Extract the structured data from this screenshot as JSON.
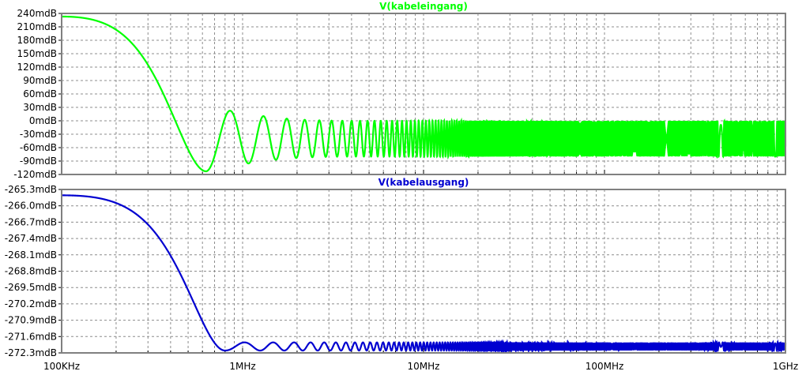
{
  "chart_data": [
    {
      "type": "line",
      "title": "V(kabeleingang)",
      "color": "#00ff00",
      "xscale": "log",
      "xlim": [
        100000,
        1000000000
      ],
      "ylim": [
        -120,
        240
      ],
      "yunit": "mdB",
      "yticks": [
        "240mdB",
        "210mdB",
        "180mdB",
        "150mdB",
        "120mdB",
        "90mdB",
        "60mdB",
        "30mdB",
        "0mdB",
        "-30mdB",
        "-60mdB",
        "-90mdB",
        "-120mdB"
      ],
      "yvalues": [
        240,
        210,
        180,
        150,
        120,
        90,
        60,
        30,
        0,
        -30,
        -60,
        -90,
        -120
      ],
      "grid": true,
      "series": [
        {
          "shape": "decaying ripple vs log frequency",
          "start": [
            100000,
            233
          ],
          "minimum": [
            630000,
            -113
          ],
          "peaks": [
            [
              1100000,
              12
            ],
            [
              1550000,
              -87
            ],
            [
              2000000,
              2
            ]
          ],
          "troughs": [
            [
              1550000,
              -87
            ],
            [
              2350000,
              -85
            ]
          ],
          "steady_band": [
            -80,
            0
          ],
          "ripple_period_hz": 450000
        }
      ]
    },
    {
      "type": "line",
      "title": "V(kabelausgang)",
      "color": "#0000d0",
      "xscale": "log",
      "xlim": [
        100000,
        1000000000
      ],
      "ylim": [
        -272.3,
        -265.3
      ],
      "yunit": "mdB",
      "yticks": [
        "-265.3mdB",
        "-266.0mdB",
        "-266.7mdB",
        "-267.4mdB",
        "-268.1mdB",
        "-268.8mdB",
        "-269.5mdB",
        "-270.2mdB",
        "-270.9mdB",
        "-271.6mdB",
        "-272.3mdB"
      ],
      "yvalues": [
        -265.3,
        -266.0,
        -266.7,
        -267.4,
        -268.1,
        -268.8,
        -269.5,
        -270.2,
        -270.9,
        -271.6,
        -272.3
      ],
      "grid": true,
      "series": [
        {
          "shape": "decaying ripple vs log frequency",
          "start": [
            100000,
            -265.55
          ],
          "minimum": [
            800000,
            -272.2
          ],
          "peaks": [
            [
              1150000,
              -271.7
            ]
          ],
          "steady_band": [
            -272.2,
            -271.85
          ],
          "ripple_period_hz": 450000
        }
      ]
    }
  ],
  "x_axis": {
    "ticks": [
      "100KHz",
      "1MHz",
      "10MHz",
      "100MHz",
      "1GHz"
    ],
    "values": [
      100000,
      1000000,
      10000000,
      100000000,
      1000000000
    ]
  }
}
